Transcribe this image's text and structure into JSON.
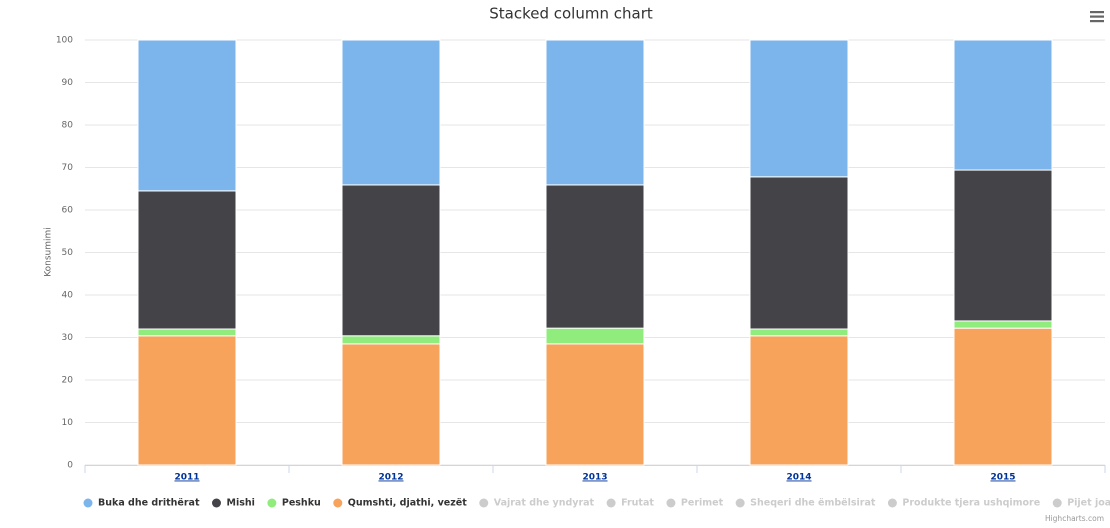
{
  "chart_data": {
    "type": "stacked_column",
    "title": "Stacked column chart",
    "y_axis_label": "Konsumimi",
    "credit": "Highcharts.com",
    "categories": [
      "2011",
      "2012",
      "2013",
      "2014",
      "2015"
    ],
    "ylim": [
      0,
      100
    ],
    "yticks": [
      0,
      10,
      20,
      30,
      40,
      50,
      60,
      70,
      80,
      90,
      100
    ],
    "grid": true,
    "legend": "bottom-left",
    "series": [
      {
        "name": "Buka dhe drithërat",
        "color": "#7cb5ec",
        "visible": true,
        "values": [
          35.5,
          34.1,
          34.1,
          32.2,
          30.6
        ]
      },
      {
        "name": "Mishi",
        "color": "#434348",
        "visible": true,
        "values": [
          32.5,
          35.5,
          33.7,
          35.8,
          35.5
        ]
      },
      {
        "name": "Peshku",
        "color": "#90ed7d",
        "visible": true,
        "values": [
          1.6,
          1.9,
          3.7,
          1.6,
          1.7
        ]
      },
      {
        "name": "Qumshti, djathi, vezët",
        "color": "#f7a35c",
        "visible": true,
        "values": [
          30.4,
          28.5,
          28.5,
          30.4,
          32.2
        ]
      },
      {
        "name": "Vajrat dhe yndyrat",
        "color": "#8085e9",
        "visible": false,
        "values": [
          null,
          null,
          null,
          null,
          null
        ]
      },
      {
        "name": "Frutat",
        "color": "#f15c80",
        "visible": false,
        "values": [
          null,
          null,
          null,
          null,
          null
        ]
      },
      {
        "name": "Perimet",
        "color": "#e4d354",
        "visible": false,
        "values": [
          null,
          null,
          null,
          null,
          null
        ]
      },
      {
        "name": "Sheqeri dhe ëmbëlsirat",
        "color": "#2b908f",
        "visible": false,
        "values": [
          null,
          null,
          null,
          null,
          null
        ]
      },
      {
        "name": "Produkte tjera ushqimore",
        "color": "#f45b5b",
        "visible": false,
        "values": [
          null,
          null,
          null,
          null,
          null
        ]
      },
      {
        "name": "Pijet joalkoolike",
        "color": "#91e8e1",
        "visible": false,
        "values": [
          null,
          null,
          null,
          null,
          null
        ]
      }
    ]
  }
}
